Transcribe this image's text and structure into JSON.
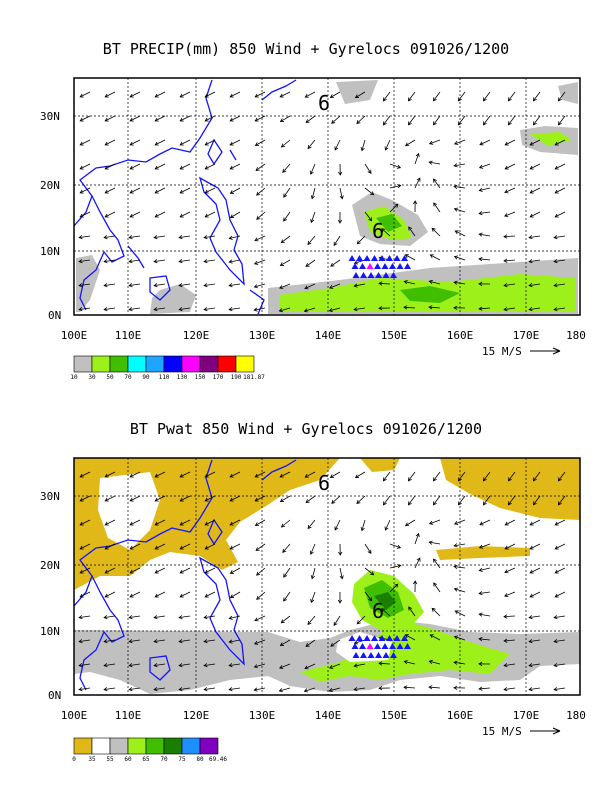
{
  "panels": [
    {
      "id": "precip",
      "title": "BT PRECIP(mm) 850 Wind + Gyrelocs 091026/1200",
      "lat_labels": [
        "30N",
        "20N",
        "10N",
        "0N"
      ],
      "lon_labels": [
        "100E",
        "110E",
        "120E",
        "130E",
        "140E",
        "150E",
        "160E",
        "170E",
        "180"
      ],
      "vector_ref": "15 M/S",
      "legend": {
        "colors": [
          "#c0c0c0",
          "#9ef01a",
          "#3fbf00",
          "#00ffff",
          "#1ea5ff",
          "#0000ff",
          "#ff00ff",
          "#800080",
          "#ff0000",
          "#ffff00"
        ],
        "labels": [
          "10",
          "30",
          "50",
          "70",
          "90",
          "110",
          "130",
          "150",
          "170",
          "190",
          "181.87"
        ]
      },
      "storm_marker": "6",
      "storm_marker_2": "6"
    },
    {
      "id": "pwat",
      "title": "BT Pwat 850 Wind + Gyrelocs 091026/1200",
      "lat_labels": [
        "30N",
        "20N",
        "10N",
        "0N"
      ],
      "lon_labels": [
        "100E",
        "110E",
        "120E",
        "130E",
        "140E",
        "150E",
        "160E",
        "170E",
        "180"
      ],
      "vector_ref": "15 M/S",
      "legend": {
        "colors": [
          "#e0b818",
          "#ffffff",
          "#c0c0c0",
          "#9ef01a",
          "#3fbf00",
          "#1a7f00",
          "#1e8fff",
          "#8000c0"
        ],
        "labels": [
          "0",
          "35",
          "55",
          "60",
          "65",
          "70",
          "75",
          "80",
          "69.46"
        ]
      },
      "storm_marker": "6",
      "storm_marker_2": "6"
    }
  ]
}
